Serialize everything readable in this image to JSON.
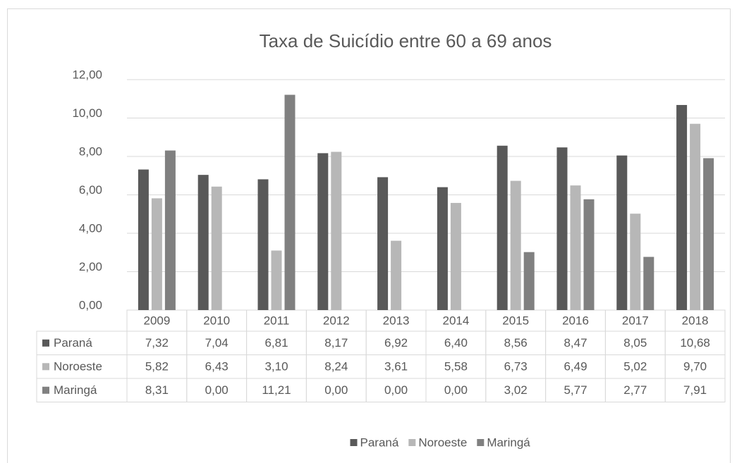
{
  "chart_data": {
    "type": "bar",
    "title": "Taxa de Suicídio entre 60 a 69 anos",
    "categories": [
      "2009",
      "2010",
      "2011",
      "2012",
      "2013",
      "2014",
      "2015",
      "2016",
      "2017",
      "2018"
    ],
    "series": [
      {
        "name": "Paraná",
        "color": "#595959",
        "values": [
          7.32,
          7.04,
          6.81,
          8.17,
          6.92,
          6.4,
          8.56,
          8.47,
          8.05,
          10.68
        ],
        "value_labels": [
          "7,32",
          "7,04",
          "6,81",
          "8,17",
          "6,92",
          "6,40",
          "8,56",
          "8,47",
          "8,05",
          "10,68"
        ]
      },
      {
        "name": "Noroeste",
        "color": "#b7b7b7",
        "values": [
          5.82,
          6.43,
          3.1,
          8.24,
          3.61,
          5.58,
          6.73,
          6.49,
          5.02,
          9.7
        ],
        "value_labels": [
          "5,82",
          "6,43",
          "3,10",
          "8,24",
          "3,61",
          "5,58",
          "6,73",
          "6,49",
          "5,02",
          "9,70"
        ]
      },
      {
        "name": "Maringá",
        "color": "#808080",
        "values": [
          8.31,
          0.0,
          11.21,
          0.0,
          0.0,
          0.0,
          3.02,
          5.77,
          2.77,
          7.91
        ],
        "value_labels": [
          "8,31",
          "0,00",
          "11,21",
          "0,00",
          "0,00",
          "0,00",
          "3,02",
          "5,77",
          "2,77",
          "7,91"
        ]
      }
    ],
    "ylim": [
      0,
      12
    ],
    "yticks": [
      {
        "value": 0,
        "label": "0,00"
      },
      {
        "value": 2,
        "label": "2,00"
      },
      {
        "value": 4,
        "label": "4,00"
      },
      {
        "value": 6,
        "label": "6,00"
      },
      {
        "value": 8,
        "label": "8,00"
      },
      {
        "value": 10,
        "label": "10,00"
      },
      {
        "value": 12,
        "label": "12,00"
      }
    ],
    "grid": true,
    "legend": "bottom"
  }
}
